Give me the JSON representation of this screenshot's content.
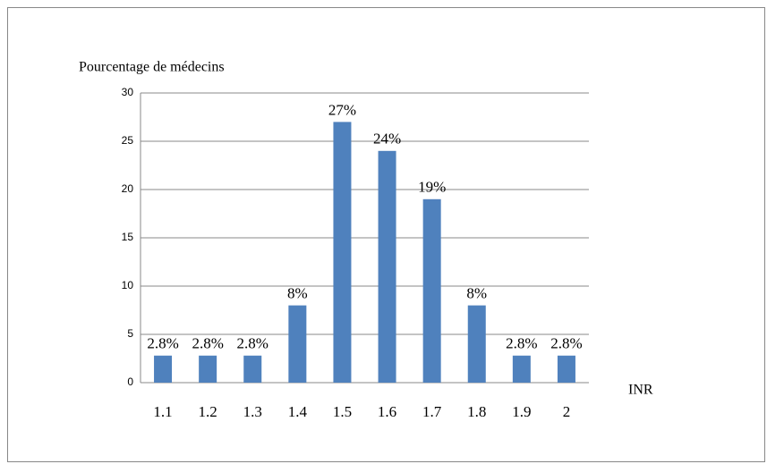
{
  "chart_data": {
    "type": "bar",
    "y_axis_label": "Pourcentage de médecins",
    "x_axis_label": "INR",
    "categories": [
      "1.1",
      "1.2",
      "1.3",
      "1.4",
      "1.5",
      "1.6",
      "1.7",
      "1.8",
      "1.9",
      "2"
    ],
    "values": [
      2.8,
      2.8,
      2.8,
      8,
      27,
      24,
      19,
      8,
      2.8,
      2.8
    ],
    "value_labels": [
      "2.8%",
      "2.8%",
      "2.8%",
      "8%",
      "27%",
      "24%",
      "19%",
      "8%",
      "2.8%",
      "2.8%"
    ],
    "color": "#4f81bd",
    "ylim": [
      0,
      30
    ],
    "yticks": [
      0,
      5,
      10,
      15,
      20,
      25,
      30
    ],
    "grid": true
  }
}
